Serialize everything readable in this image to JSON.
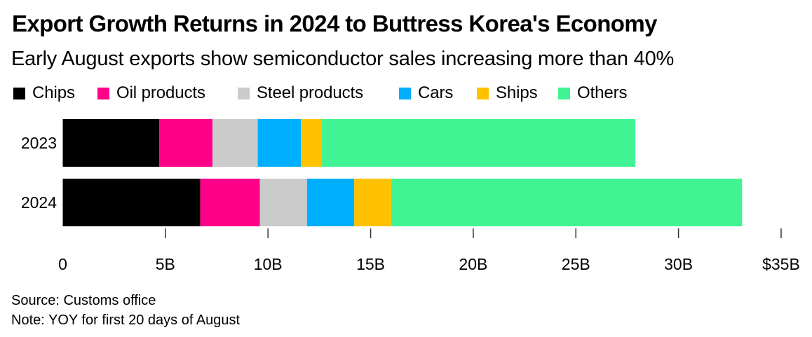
{
  "chart_data": {
    "type": "bar",
    "orientation": "horizontal",
    "stacked": true,
    "title": "Export Growth Returns in 2024 to Buttress Korea's Economy",
    "subtitle": "Early August exports show semiconductor sales increasing more than 40%",
    "categories": [
      "2023",
      "2024"
    ],
    "series": [
      {
        "name": "Chips",
        "color": "#000000",
        "values": [
          4.7,
          6.7
        ]
      },
      {
        "name": "Oil products",
        "color": "#FF0088",
        "values": [
          2.6,
          2.9
        ]
      },
      {
        "name": "Steel products",
        "color": "#CBCBCB",
        "values": [
          2.2,
          2.3
        ]
      },
      {
        "name": "Cars",
        "color": "#00AEFF",
        "values": [
          2.1,
          2.3
        ]
      },
      {
        "name": "Ships",
        "color": "#FFC200",
        "values": [
          1.0,
          1.8
        ]
      },
      {
        "name": "Others",
        "color": "#40F493",
        "values": [
          15.3,
          17.1
        ]
      }
    ],
    "xlabel": "",
    "ylabel": "",
    "xlim": [
      0,
      35
    ],
    "xticks": [
      0,
      5,
      10,
      15,
      20,
      25,
      30,
      35
    ],
    "xtick_labels": [
      "0",
      "5B",
      "10B",
      "15B",
      "20B",
      "25B",
      "30B",
      "$35B"
    ],
    "grid": false,
    "legend_position": "top-left",
    "source": "Source: Customs office",
    "note": "Note: YOY for first 20 days of August"
  }
}
